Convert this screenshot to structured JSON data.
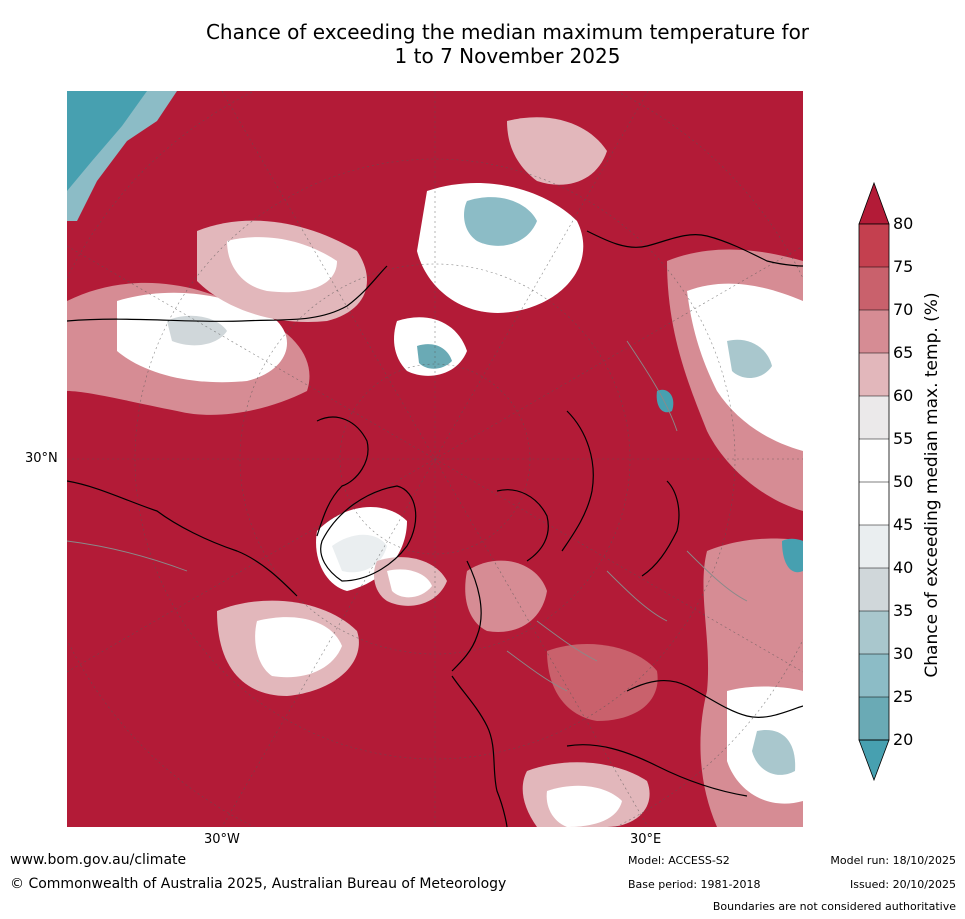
{
  "title_line1": "Chance of exceeding the median maximum temperature for",
  "title_line2": "1 to 7 November 2025",
  "map": {
    "lat_label": "30°N",
    "lon_labels": [
      "30°W",
      "30°E"
    ],
    "colors": {
      "strong_above": "#b31b37",
      "above_75": "#c4404f",
      "above_70": "#c9616c",
      "above_65": "#d68c94",
      "above_60": "#e2b7bb",
      "near_55": "#ebe9ea",
      "near_50": "#ffffff",
      "near_45": "#eaeef0",
      "below_40": "#d0d7da",
      "below_35": "#a9c7cd",
      "below_30": "#8cbcc6",
      "below_25": "#6aaab5",
      "below_20": "#47a0b0"
    }
  },
  "colorbar": {
    "label": "Chance of exceeding median max. temp. (%)",
    "ticks": [
      "80",
      "75",
      "70",
      "65",
      "60",
      "55",
      "50",
      "45",
      "40",
      "35",
      "30",
      "25",
      "20"
    ]
  },
  "footer": {
    "website": "www.bom.gov.au/climate",
    "copyright": "© Commonwealth of Australia 2025, Australian Bureau of Meteorology",
    "model": "Model: ACCESS-S2",
    "base_period": "Base period: 1981-2018",
    "model_run": "Model run: 18/10/2025",
    "issued": "Issued: 20/10/2025",
    "disclaimer": "Boundaries are not considered authoritative"
  }
}
